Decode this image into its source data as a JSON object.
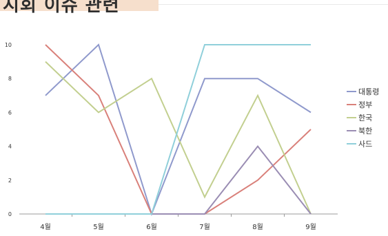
{
  "header": {
    "title": "시회 이슈 관련"
  },
  "chart_data": {
    "type": "line",
    "title": "",
    "xlabel": "",
    "ylabel": "",
    "categories": [
      "4월",
      "5월",
      "6월",
      "7월",
      "8월",
      "9월"
    ],
    "ylim": [
      0,
      10
    ],
    "yticks": [
      0,
      2,
      4,
      6,
      8,
      10
    ],
    "grid": false,
    "legend_position": "right",
    "series": [
      {
        "name": "대통령",
        "color": "#8f99cc",
        "values": [
          7,
          10,
          0,
          8,
          8,
          6
        ]
      },
      {
        "name": "정부",
        "color": "#d9807a",
        "values": [
          10,
          7,
          0,
          0,
          2,
          5
        ]
      },
      {
        "name": "한국",
        "color": "#c2cf8f",
        "values": [
          9,
          6,
          8,
          1,
          7,
          0
        ]
      },
      {
        "name": "북한",
        "color": "#9a8db3",
        "values": [
          0,
          0,
          0,
          0,
          4,
          0
        ]
      },
      {
        "name": "사드",
        "color": "#8fcfda",
        "values": [
          0,
          0,
          0,
          10,
          10,
          10
        ]
      }
    ]
  }
}
